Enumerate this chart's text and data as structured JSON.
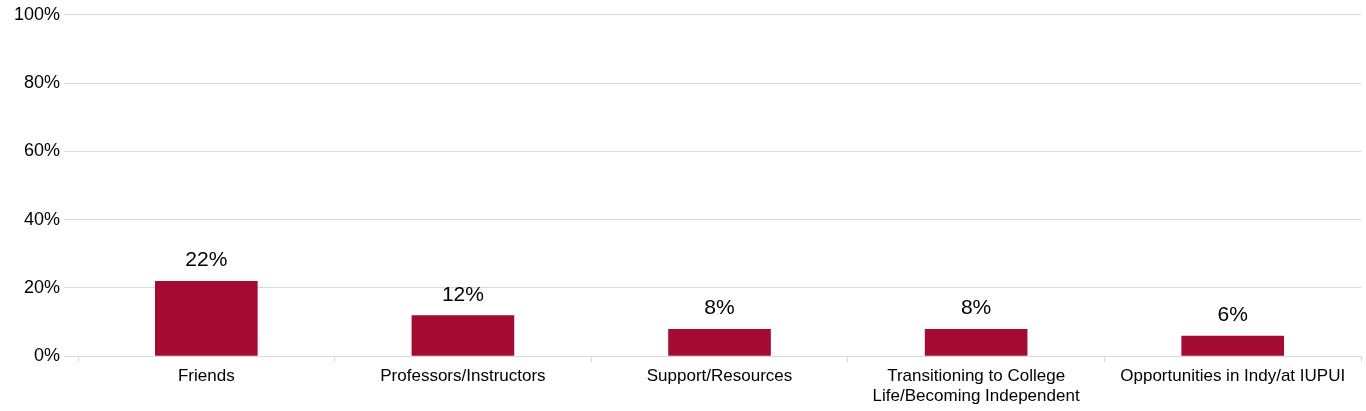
{
  "chart_data": {
    "type": "bar",
    "categories": [
      "Friends",
      "Professors/Instructors",
      "Support/Resources",
      "Transitioning to College Life/Becoming Independent",
      "Opportunities in Indy/at IUPUI"
    ],
    "values": [
      22,
      12,
      8,
      8,
      6
    ],
    "value_labels": [
      "22%",
      "12%",
      "8%",
      "8%",
      "6%"
    ],
    "color": "#a50a33",
    "ylim": [
      0,
      100
    ],
    "yticks": [
      {
        "value": 0,
        "label": "0%"
      },
      {
        "value": 20,
        "label": "20%"
      },
      {
        "value": 40,
        "label": "40%"
      },
      {
        "value": 60,
        "label": "60%"
      },
      {
        "value": 80,
        "label": "80%"
      },
      {
        "value": 100,
        "label": "100%"
      }
    ],
    "grid": "y",
    "legend": false
  }
}
